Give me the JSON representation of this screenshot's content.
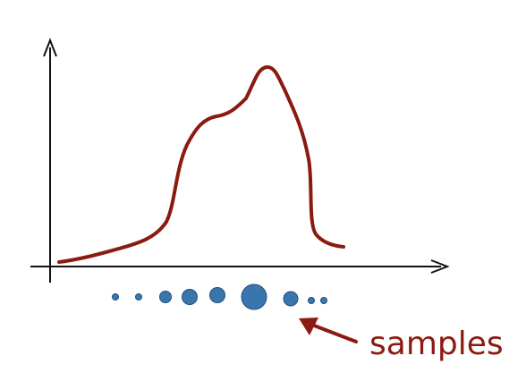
{
  "annotation": {
    "label": "samples"
  },
  "colors": {
    "curve": "#8b1a10",
    "axes": "#111111",
    "sample_fill": "#3a76ad",
    "sample_stroke": "#1f4f7c",
    "label": "#8b1a10"
  },
  "icons": {
    "axes": "vertical-and-horizontal-arrow-axes",
    "samples": "circle-dot",
    "pointer": "arrow-icon"
  }
}
